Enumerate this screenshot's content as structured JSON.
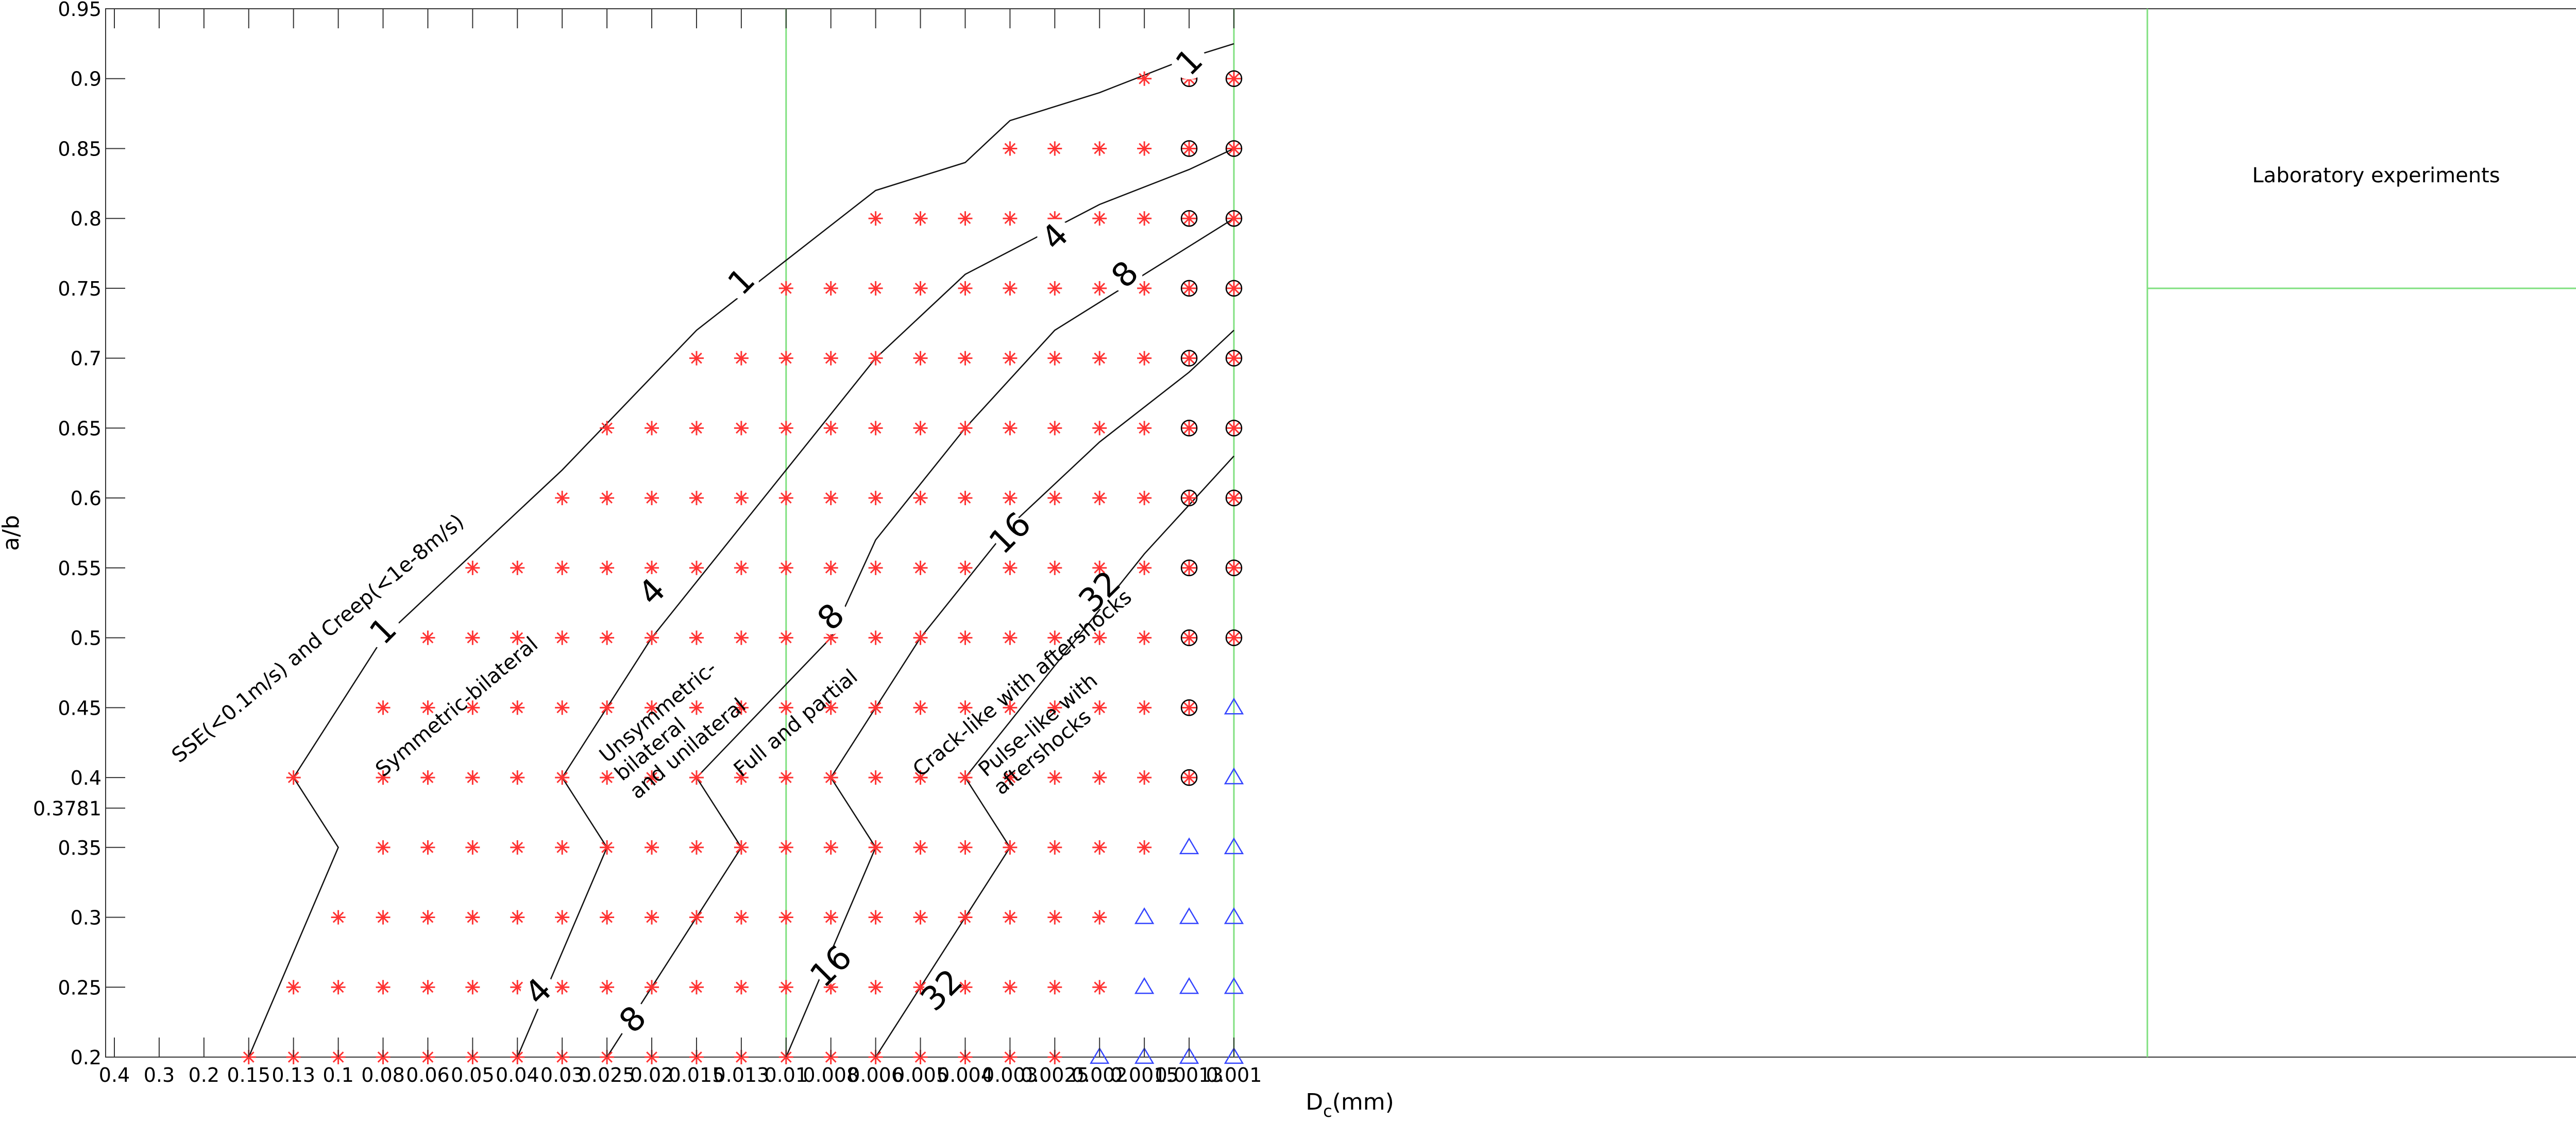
{
  "chart_data": {
    "type": "scatter",
    "xlabel_main": "D",
    "xlabel_sub": "c",
    "xlabel_unit": "(mm)",
    "ylabel": "a/b",
    "xlim": [
      0.5,
      0.001
    ],
    "ylim": [
      0.2,
      0.95
    ],
    "x_ticks": [
      "0.4",
      "0.3",
      "0.2",
      "0.15",
      "0.13",
      "0.1",
      "0.08",
      "0.06",
      "0.05",
      "0.04",
      "0.03",
      "0.025",
      "0.02",
      "0.015",
      "0.013",
      "0.01",
      "0.008",
      "0.006",
      "0.005",
      "0.004",
      "0.003",
      "0.0025",
      "0.002",
      "0.0015",
      "0.0013",
      "0.001"
    ],
    "y_ticks": [
      "0.2",
      "0.25",
      "0.3",
      "0.35",
      "0.3781",
      "0.4",
      "0.45",
      "0.5",
      "0.55",
      "0.6",
      "0.65",
      "0.7",
      "0.75",
      "0.8",
      "0.85",
      "0.9",
      "0.95"
    ],
    "y_tick_values": [
      0.2,
      0.25,
      0.3,
      0.35,
      0.3781,
      0.4,
      0.45,
      0.5,
      0.55,
      0.6,
      0.65,
      0.7,
      0.75,
      0.8,
      0.85,
      0.9,
      0.95
    ],
    "green_vlines_x": [
      "0.01",
      "0.001"
    ],
    "series": [
      {
        "marker": "red-asterisk",
        "color": "#ff3333",
        "rows": [
          {
            "y": 0.2,
            "x": [
              "0.15",
              "0.13",
              "0.1",
              "0.08",
              "0.06",
              "0.05",
              "0.04",
              "0.03",
              "0.025",
              "0.02",
              "0.015",
              "0.013",
              "0.01",
              "0.008",
              "0.006",
              "0.005",
              "0.004",
              "0.003",
              "0.0025"
            ]
          },
          {
            "y": 0.25,
            "x": [
              "0.13",
              "0.1",
              "0.08",
              "0.06",
              "0.05",
              "0.04",
              "0.03",
              "0.025",
              "0.02",
              "0.015",
              "0.013",
              "0.01",
              "0.008",
              "0.006",
              "0.005",
              "0.004",
              "0.003",
              "0.0025",
              "0.002"
            ]
          },
          {
            "y": 0.3,
            "x": [
              "0.1",
              "0.08",
              "0.06",
              "0.05",
              "0.04",
              "0.03",
              "0.025",
              "0.02",
              "0.015",
              "0.013",
              "0.01",
              "0.008",
              "0.006",
              "0.005",
              "0.004",
              "0.003",
              "0.0025",
              "0.002"
            ]
          },
          {
            "y": 0.35,
            "x": [
              "0.08",
              "0.06",
              "0.05",
              "0.04",
              "0.03",
              "0.025",
              "0.02",
              "0.015",
              "0.013",
              "0.01",
              "0.008",
              "0.006",
              "0.005",
              "0.004",
              "0.003",
              "0.0025",
              "0.002",
              "0.0015"
            ]
          },
          {
            "y": 0.4,
            "x": [
              "0.13",
              "0.08",
              "0.06",
              "0.05",
              "0.04",
              "0.03",
              "0.025",
              "0.02",
              "0.015",
              "0.013",
              "0.01",
              "0.008",
              "0.006",
              "0.005",
              "0.004",
              "0.003",
              "0.0025",
              "0.002",
              "0.0015",
              "0.0013"
            ]
          },
          {
            "y": 0.45,
            "x": [
              "0.08",
              "0.06",
              "0.05",
              "0.04",
              "0.03",
              "0.025",
              "0.02",
              "0.015",
              "0.013",
              "0.01",
              "0.008",
              "0.006",
              "0.005",
              "0.004",
              "0.003",
              "0.0025",
              "0.002",
              "0.0015",
              "0.0013"
            ]
          },
          {
            "y": 0.5,
            "x": [
              "0.06",
              "0.05",
              "0.04",
              "0.03",
              "0.025",
              "0.02",
              "0.015",
              "0.013",
              "0.01",
              "0.008",
              "0.006",
              "0.005",
              "0.004",
              "0.003",
              "0.0025",
              "0.002",
              "0.0015",
              "0.0013",
              "0.001"
            ]
          },
          {
            "y": 0.55,
            "x": [
              "0.05",
              "0.04",
              "0.03",
              "0.025",
              "0.02",
              "0.015",
              "0.013",
              "0.01",
              "0.008",
              "0.006",
              "0.005",
              "0.004",
              "0.003",
              "0.0025",
              "0.002",
              "0.0015",
              "0.0013",
              "0.001"
            ]
          },
          {
            "y": 0.6,
            "x": [
              "0.03",
              "0.025",
              "0.02",
              "0.015",
              "0.013",
              "0.01",
              "0.008",
              "0.006",
              "0.005",
              "0.004",
              "0.003",
              "0.0025",
              "0.002",
              "0.0015",
              "0.0013",
              "0.001"
            ]
          },
          {
            "y": 0.65,
            "x": [
              "0.025",
              "0.02",
              "0.015",
              "0.013",
              "0.01",
              "0.008",
              "0.006",
              "0.005",
              "0.004",
              "0.003",
              "0.0025",
              "0.002",
              "0.0015",
              "0.0013",
              "0.001"
            ]
          },
          {
            "y": 0.7,
            "x": [
              "0.015",
              "0.013",
              "0.01",
              "0.008",
              "0.006",
              "0.005",
              "0.004",
              "0.003",
              "0.0025",
              "0.002",
              "0.0015",
              "0.0013",
              "0.001"
            ]
          },
          {
            "y": 0.75,
            "x": [
              "0.013",
              "0.01",
              "0.008",
              "0.006",
              "0.005",
              "0.004",
              "0.003",
              "0.0025",
              "0.002",
              "0.0015",
              "0.0013",
              "0.001"
            ]
          },
          {
            "y": 0.8,
            "x": [
              "0.006",
              "0.005",
              "0.004",
              "0.003",
              "0.0025",
              "0.002",
              "0.0015",
              "0.0013",
              "0.001"
            ]
          },
          {
            "y": 0.85,
            "x": [
              "0.003",
              "0.0025",
              "0.002",
              "0.0015",
              "0.0013",
              "0.001"
            ]
          },
          {
            "y": 0.9,
            "x": [
              "0.0015",
              "0.0013",
              "0.001"
            ]
          }
        ]
      },
      {
        "marker": "black-circle",
        "color": "#000000",
        "rows": [
          {
            "y": 0.4,
            "x": [
              "0.0013"
            ]
          },
          {
            "y": 0.45,
            "x": [
              "0.0013"
            ]
          },
          {
            "y": 0.5,
            "x": [
              "0.0013",
              "0.001"
            ]
          },
          {
            "y": 0.55,
            "x": [
              "0.0013",
              "0.001"
            ]
          },
          {
            "y": 0.6,
            "x": [
              "0.0013",
              "0.001"
            ]
          },
          {
            "y": 0.65,
            "x": [
              "0.0013",
              "0.001"
            ]
          },
          {
            "y": 0.7,
            "x": [
              "0.0013",
              "0.001"
            ]
          },
          {
            "y": 0.75,
            "x": [
              "0.0013",
              "0.001"
            ]
          },
          {
            "y": 0.8,
            "x": [
              "0.0013",
              "0.001"
            ]
          },
          {
            "y": 0.85,
            "x": [
              "0.0013",
              "0.001"
            ]
          },
          {
            "y": 0.9,
            "x": [
              "0.0013",
              "0.001"
            ]
          }
        ]
      },
      {
        "marker": "blue-triangle",
        "color": "#3344ff",
        "rows": [
          {
            "y": 0.2,
            "x": [
              "0.002",
              "0.0015",
              "0.0013",
              "0.001"
            ]
          },
          {
            "y": 0.25,
            "x": [
              "0.0015",
              "0.0013",
              "0.001"
            ]
          },
          {
            "y": 0.3,
            "x": [
              "0.0015",
              "0.0013",
              "0.001"
            ]
          },
          {
            "y": 0.35,
            "x": [
              "0.0013",
              "0.001"
            ]
          },
          {
            "y": 0.4,
            "x": [
              "0.001"
            ]
          },
          {
            "y": 0.45,
            "x": [
              "0.001"
            ]
          }
        ]
      }
    ],
    "contours": [
      {
        "level": "1",
        "points": [
          [
            "0.15",
            0.2
          ],
          [
            "0.1",
            0.35
          ],
          [
            "0.13",
            0.4
          ],
          [
            "0.08",
            0.5
          ],
          [
            "0.03",
            0.62
          ],
          [
            "0.015",
            0.72
          ],
          [
            "0.01",
            0.77
          ],
          [
            "0.006",
            0.82
          ],
          [
            "0.004",
            0.84
          ],
          [
            "0.003",
            0.87
          ],
          [
            "0.002",
            0.89
          ],
          [
            "0.0013",
            0.915
          ],
          [
            "0.001",
            0.925
          ]
        ],
        "labels": [
          {
            "x": "0.08",
            "y": 0.505
          },
          {
            "x": "0.013",
            "y": 0.755
          },
          {
            "x": "0.0013",
            "y": 0.912
          }
        ]
      },
      {
        "level": "4",
        "points": [
          [
            "0.04",
            0.2
          ],
          [
            "0.025",
            0.35
          ],
          [
            "0.03",
            0.4
          ],
          [
            "0.02",
            0.5
          ],
          [
            "0.01",
            0.62
          ],
          [
            "0.006",
            0.7
          ],
          [
            "0.004",
            0.76
          ],
          [
            "0.002",
            0.81
          ],
          [
            "0.0013",
            0.835
          ],
          [
            "0.001",
            0.85
          ]
        ],
        "labels": [
          {
            "x": "0.035",
            "y": 0.247
          },
          {
            "x": "0.02",
            "y": 0.533
          },
          {
            "x": "0.0025",
            "y": 0.787
          }
        ]
      },
      {
        "level": "8",
        "points": [
          [
            "0.025",
            0.2
          ],
          [
            "0.013",
            0.35
          ],
          [
            "0.015",
            0.4
          ],
          [
            "0.008",
            0.5
          ],
          [
            "0.006",
            0.57
          ],
          [
            "0.004",
            0.65
          ],
          [
            "0.0025",
            0.72
          ],
          [
            "0.0015",
            0.76
          ],
          [
            "0.001",
            0.8
          ]
        ],
        "labels": [
          {
            "x": "0.022",
            "y": 0.227
          },
          {
            "x": "0.008",
            "y": 0.515
          },
          {
            "x": "0.0017",
            "y": 0.76
          }
        ]
      },
      {
        "level": "16",
        "points": [
          [
            "0.01",
            0.2
          ],
          [
            "0.006",
            0.35
          ],
          [
            "0.008",
            0.4
          ],
          [
            "0.005",
            0.5
          ],
          [
            "0.003",
            0.58
          ],
          [
            "0.002",
            0.64
          ],
          [
            "0.0013",
            0.69
          ],
          [
            "0.001",
            0.72
          ]
        ],
        "labels": [
          {
            "x": "0.008",
            "y": 0.265
          },
          {
            "x": "0.003",
            "y": 0.575
          }
        ]
      },
      {
        "level": "32",
        "points": [
          [
            "0.006",
            0.2
          ],
          [
            "0.003",
            0.35
          ],
          [
            "0.004",
            0.4
          ],
          [
            "0.0025",
            0.48
          ],
          [
            "0.0015",
            0.56
          ],
          [
            "0.001",
            0.63
          ]
        ],
        "labels": [
          {
            "x": "0.0045",
            "y": 0.248
          },
          {
            "x": "0.002",
            "y": 0.533
          }
        ]
      }
    ],
    "annotations": [
      {
        "lines": [
          "SSE(<0.1m/s) and Creep(<1e-8m/s)"
        ],
        "x": "0.25",
        "y": 0.41,
        "rotate": -40
      },
      {
        "lines": [
          "Symmetric-bilateral"
        ],
        "x": "0.08",
        "y": 0.4,
        "rotate": -40
      },
      {
        "lines": [
          "Unsymmetric-",
          "bilateral",
          "and unilateral"
        ],
        "x": "0.025",
        "y": 0.41,
        "rotate": -40
      },
      {
        "lines": [
          "Full and partial"
        ],
        "x": "0.013",
        "y": 0.4,
        "rotate": -40
      },
      {
        "lines": [
          "Crack-like with aftershocks"
        ],
        "x": "0.005",
        "y": 0.4,
        "rotate": -40
      },
      {
        "lines": [
          "Pulse-like with",
          "aftershocks"
        ],
        "x": "0.0035",
        "y": 0.4,
        "rotate": -40
      }
    ],
    "inset": {
      "label": "Laboratory experiments"
    }
  }
}
